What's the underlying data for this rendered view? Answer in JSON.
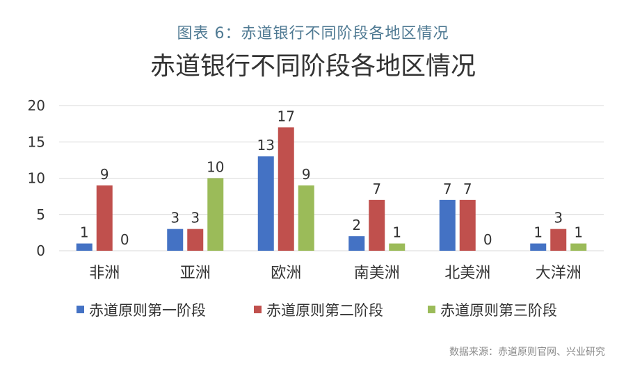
{
  "caption": "图表 6：赤道银行不同阶段各地区情况",
  "source": "数据来源：赤道原则官网、兴业研究",
  "colors": {
    "series1": "#4472c4",
    "series2": "#c0504d",
    "series3": "#9bbb59",
    "grid": "#d9d9d9",
    "text": "#333333"
  },
  "chart_data": {
    "type": "bar",
    "title": "赤道银行不同阶段各地区情况",
    "categories": [
      "非洲",
      "亚洲",
      "欧洲",
      "南美洲",
      "北美洲",
      "大洋洲"
    ],
    "series": [
      {
        "name": "赤道原则第一阶段",
        "values": [
          1,
          3,
          13,
          2,
          7,
          1
        ]
      },
      {
        "name": "赤道原则第二阶段",
        "values": [
          9,
          3,
          17,
          7,
          7,
          3
        ]
      },
      {
        "name": "赤道原则第三阶段",
        "values": [
          0,
          10,
          9,
          1,
          0,
          1
        ]
      }
    ],
    "ylim": [
      0,
      20
    ],
    "yticks": [
      0,
      5,
      10,
      15,
      20
    ],
    "grid": true,
    "legend_position": "bottom",
    "data_labels": true
  }
}
